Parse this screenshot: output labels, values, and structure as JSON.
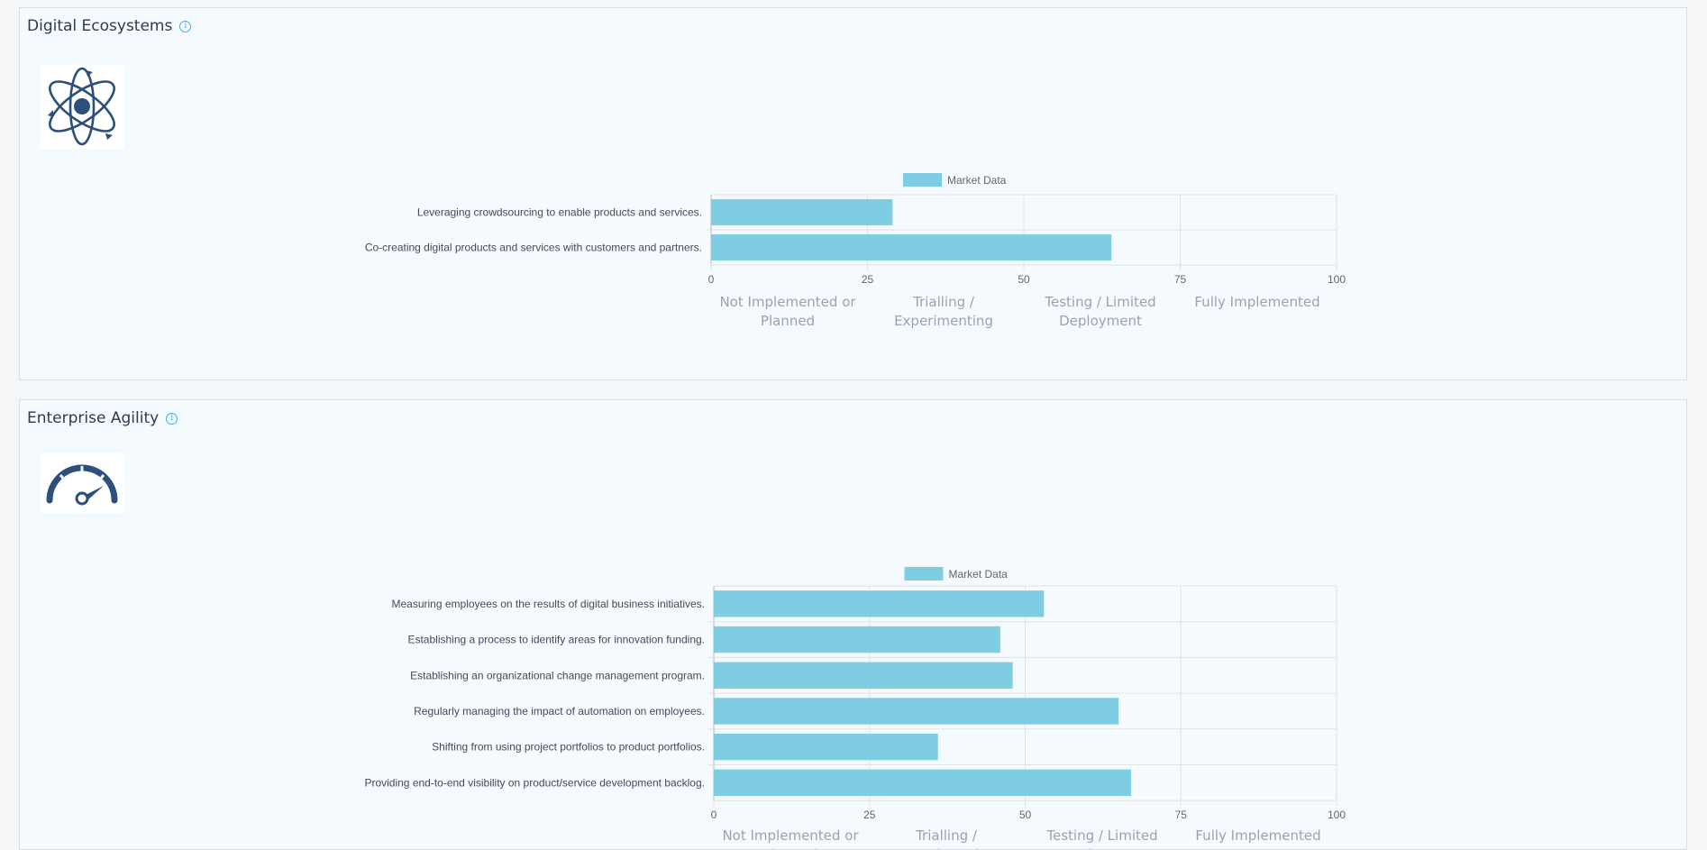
{
  "colors": {
    "bar": "#7ecde3",
    "grid": "#e0e3e6",
    "axis": "#666666"
  },
  "stages": [
    "Not Implemented or Planned",
    "Trialling / Experimenting",
    "Testing / Limited Deployment",
    "Fully Implemented"
  ],
  "panels": [
    {
      "title": "Digital Ecosystems",
      "icon": "atom-icon",
      "info_icon": "info-icon",
      "info_glyph": "i"
    },
    {
      "title": "Enterprise Agility",
      "icon": "speedometer-icon",
      "info_icon": "info-icon",
      "info_glyph": "i"
    }
  ],
  "chart_data": [
    {
      "type": "bar",
      "orientation": "horizontal",
      "legend": "Market Data",
      "categories": [
        "Leveraging crowdsourcing to enable products and services.",
        "Co-creating digital products and services with customers and partners."
      ],
      "values": [
        29,
        64
      ],
      "xlim": [
        0,
        100
      ],
      "xticks": [
        0,
        25,
        50,
        75,
        100
      ],
      "grid": true,
      "legend_position": "top-center"
    },
    {
      "type": "bar",
      "orientation": "horizontal",
      "legend": "Market Data",
      "categories": [
        "Measuring employees on the results of digital business initiatives.",
        "Establishing a process to identify areas for innovation funding.",
        "Establishing an organizational change management program.",
        "Regularly managing the impact of automation on employees.",
        "Shifting from using project portfolios to product portfolios.",
        "Providing end-to-end visibility on product/service development backlog."
      ],
      "values": [
        53,
        46,
        48,
        65,
        36,
        67
      ],
      "xlim": [
        0,
        100
      ],
      "xticks": [
        0,
        25,
        50,
        75,
        100
      ],
      "grid": true,
      "legend_position": "top-center"
    }
  ]
}
